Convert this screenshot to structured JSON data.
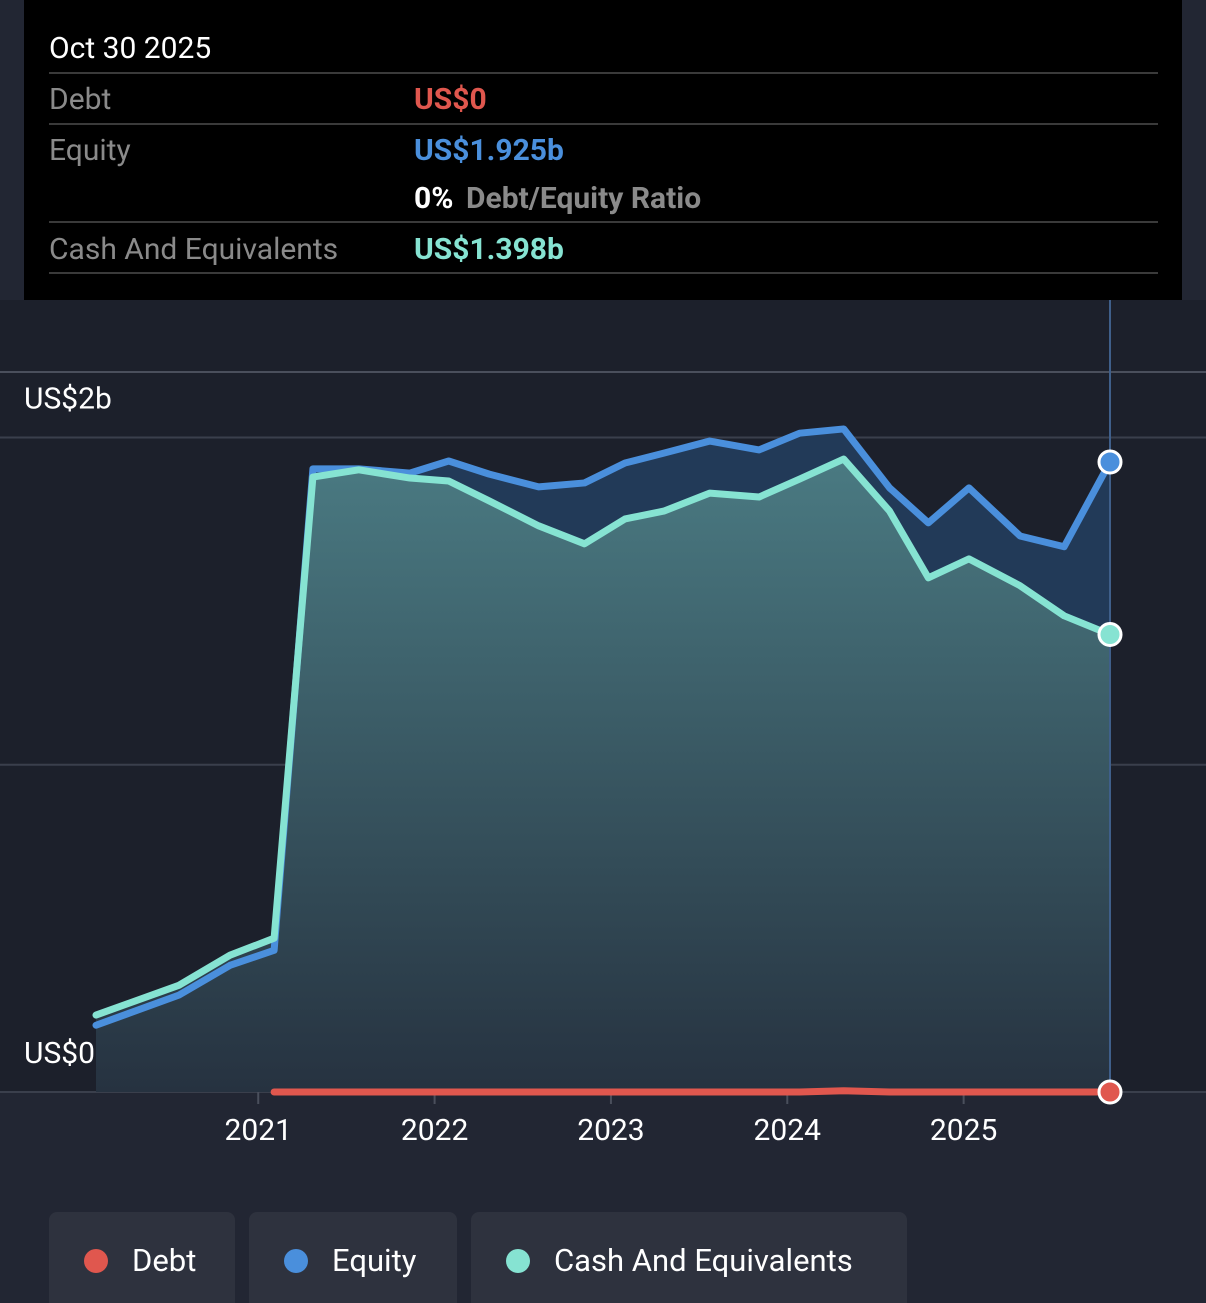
{
  "chart_data": {
    "type": "area",
    "x": [
      2020.08,
      2020.55,
      2020.84,
      2021.09,
      2021.31,
      2021.57,
      2021.86,
      2022.08,
      2022.31,
      2022.59,
      2022.85,
      2023.08,
      2023.3,
      2023.56,
      2023.84,
      2024.07,
      2024.32,
      2024.58,
      2024.8,
      2025.03,
      2025.32,
      2025.57,
      2025.83
    ],
    "series": [
      {
        "name": "Debt",
        "color": "#e0574e",
        "values": [
          null,
          null,
          null,
          0,
          0,
          0,
          0,
          0,
          0,
          0,
          0,
          0,
          0,
          0,
          0,
          0,
          0.004,
          0,
          0,
          0,
          0,
          0,
          0
        ]
      },
      {
        "name": "Equity",
        "color": "#4a8fdc",
        "values": [
          0.204,
          0.296,
          0.387,
          0.433,
          1.904,
          1.904,
          1.891,
          1.928,
          1.888,
          1.849,
          1.861,
          1.922,
          1.952,
          1.989,
          1.962,
          2.013,
          2.026,
          1.846,
          1.739,
          1.846,
          1.699,
          1.666,
          1.925
        ]
      },
      {
        "name": "Cash And Equivalents",
        "color": "#86e3d2",
        "values": [
          0.235,
          0.326,
          0.418,
          0.47,
          1.879,
          1.901,
          1.876,
          1.867,
          1.806,
          1.73,
          1.675,
          1.751,
          1.775,
          1.83,
          1.818,
          1.873,
          1.934,
          1.775,
          1.571,
          1.629,
          1.547,
          1.455,
          1.398
        ]
      }
    ],
    "xlim": [
      2020.08,
      2025.83
    ],
    "xticks": [
      2021,
      2022,
      2023,
      2024,
      2025
    ],
    "ylim": [
      0,
      2.2
    ],
    "yticks": [
      {
        "value": 0,
        "label": "US$0"
      },
      {
        "value": 1,
        "label": null
      },
      {
        "value": 2,
        "label": "US$2b"
      }
    ],
    "grid": true,
    "tooltip": {
      "date": "Oct 30 2025",
      "rows": [
        {
          "label": "Debt",
          "value": "US$0"
        },
        {
          "label": "Equity",
          "value": "US$1.925b"
        },
        {
          "label": "Cash And Equivalents",
          "value": "US$1.398b"
        }
      ],
      "ratio": "0%",
      "ratio_label": "Debt/Equity Ratio"
    }
  }
}
